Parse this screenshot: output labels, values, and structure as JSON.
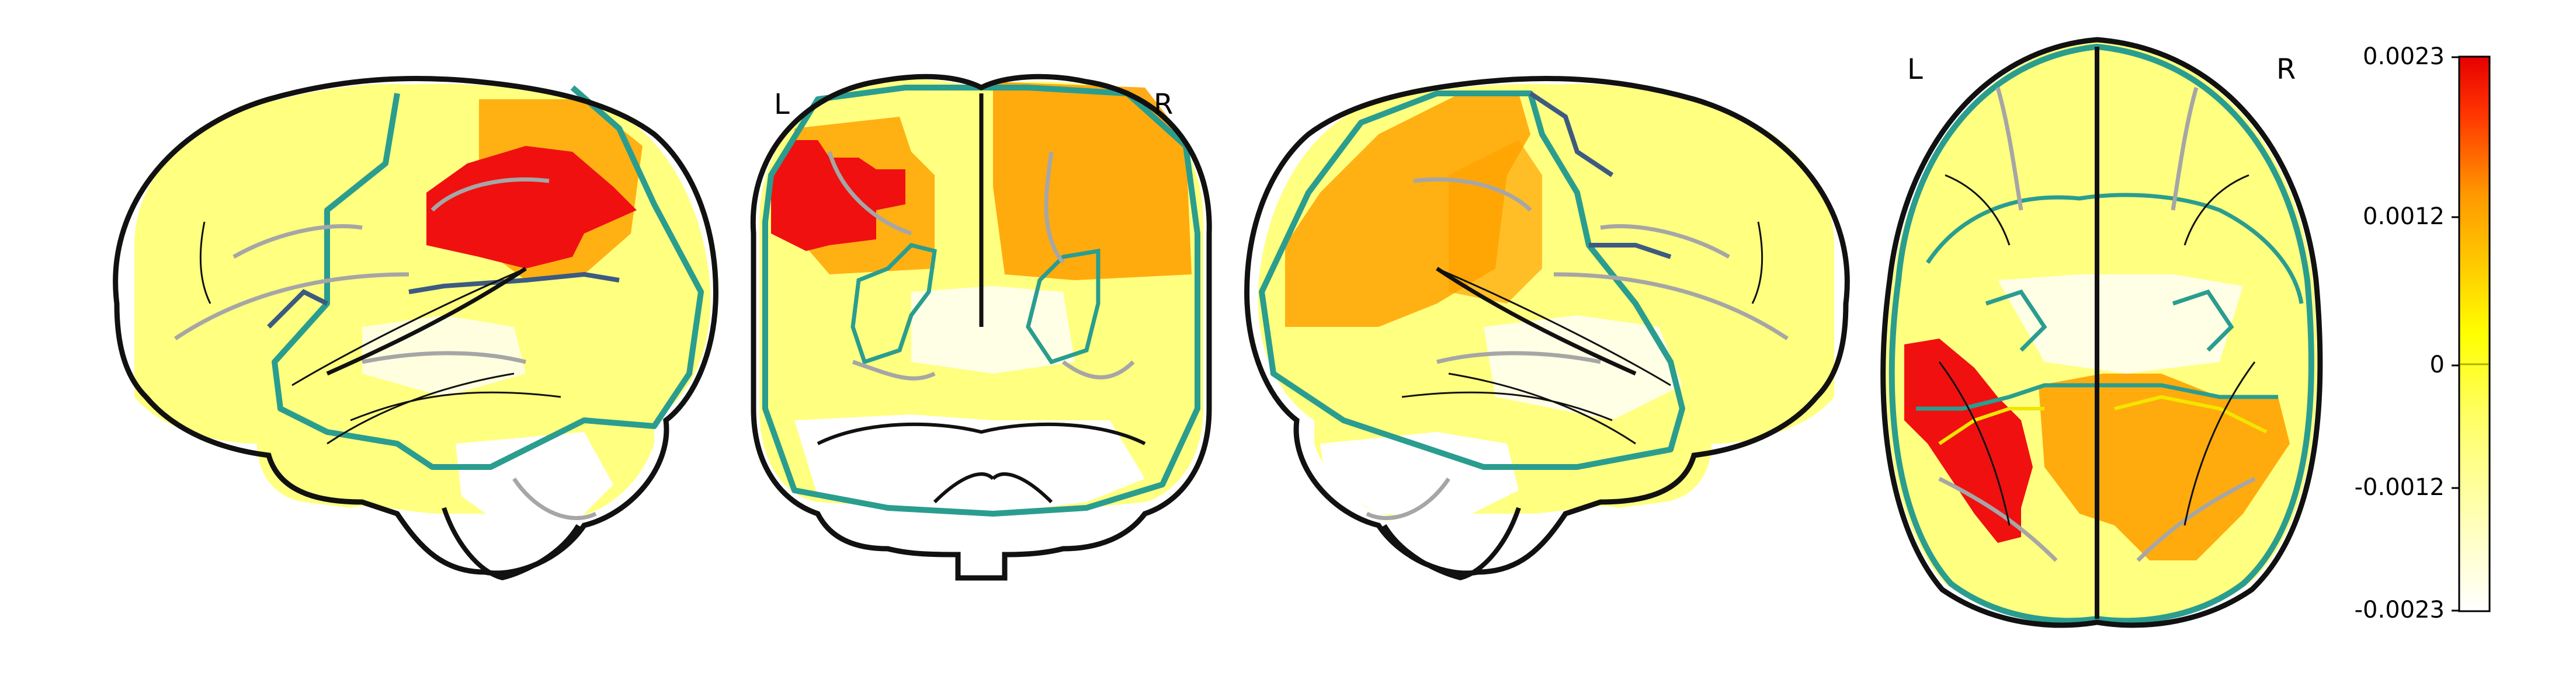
{
  "figure": {
    "views": [
      {
        "id": "sagittal-left",
        "orientation_labels": []
      },
      {
        "id": "coronal",
        "orientation_labels": [
          "L",
          "R"
        ]
      },
      {
        "id": "sagittal-right",
        "orientation_labels": []
      },
      {
        "id": "axial",
        "orientation_labels": [
          "L",
          "R"
        ]
      }
    ],
    "colorbar": {
      "tick_labels": [
        "0.0023",
        "0.0012",
        "0",
        "-0.0012",
        "-0.0023"
      ],
      "range": [
        -0.0023,
        0.0023
      ],
      "colors": [
        "#ffffff",
        "#ffff66",
        "#ffff00",
        "#ffcc00",
        "#ff9900",
        "#ff3300",
        "#e60000"
      ]
    },
    "overlay_colors": {
      "brain_outline": "#111111",
      "sulci": "#aaaaaa",
      "network_outline_1": "#2a9d8f",
      "network_outline_2": "#3d5a80",
      "network_outline_3": "#f2e600"
    }
  }
}
